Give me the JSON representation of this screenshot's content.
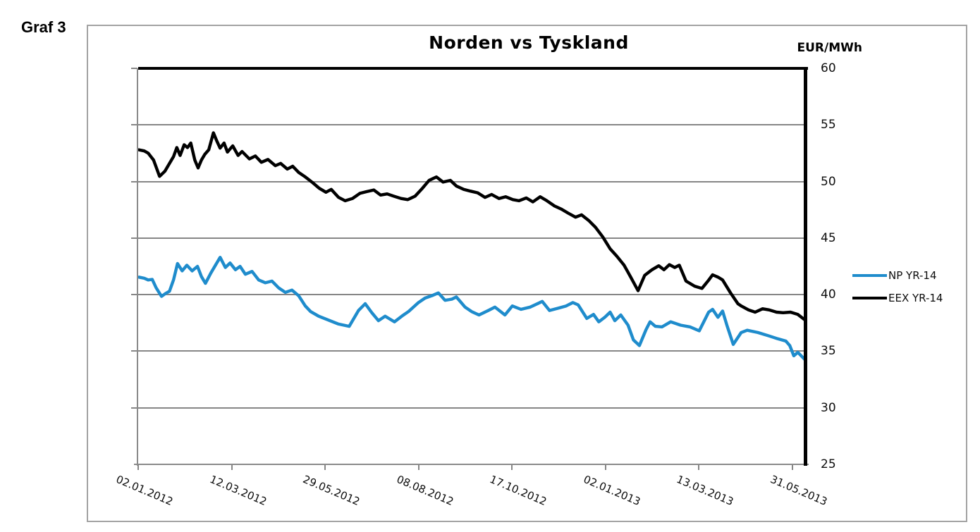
{
  "figure_label": "Graf 3",
  "chart_data": {
    "type": "line",
    "title": "Norden vs Tyskland",
    "ylabel": "EUR/MWh",
    "xlabel": "",
    "ylim": [
      25,
      60
    ],
    "y_tick_step": 5,
    "y_tick_labels": [
      "60",
      "55",
      "50",
      "45",
      "40",
      "35",
      "30",
      "25"
    ],
    "x_tick_labels": [
      "02.01.2012",
      "12.03.2012",
      "29.05.2012",
      "08.08.2012",
      "17.10.2012",
      "02.01.2013",
      "13.03.2013",
      "31.05.2013"
    ],
    "grid": "horizontal",
    "legend_position": "right",
    "axis_colors": {
      "grid": "#868686",
      "value_axis": "#000000",
      "category_axis": "#8a8a8a"
    },
    "series": [
      {
        "name": "NP YR-14",
        "color": "#1f8ccc",
        "points": [
          [
            0.0,
            41.55
          ],
          [
            0.008,
            41.45
          ],
          [
            0.014,
            41.3
          ],
          [
            0.02,
            41.35
          ],
          [
            0.026,
            40.6
          ],
          [
            0.034,
            39.85
          ],
          [
            0.04,
            40.1
          ],
          [
            0.046,
            40.3
          ],
          [
            0.052,
            41.3
          ],
          [
            0.058,
            42.75
          ],
          [
            0.065,
            42.1
          ],
          [
            0.072,
            42.6
          ],
          [
            0.08,
            42.1
          ],
          [
            0.088,
            42.5
          ],
          [
            0.094,
            41.6
          ],
          [
            0.1,
            41.0
          ],
          [
            0.108,
            41.9
          ],
          [
            0.115,
            42.6
          ],
          [
            0.122,
            43.3
          ],
          [
            0.13,
            42.4
          ],
          [
            0.137,
            42.8
          ],
          [
            0.145,
            42.2
          ],
          [
            0.152,
            42.5
          ],
          [
            0.16,
            41.8
          ],
          [
            0.17,
            42.05
          ],
          [
            0.18,
            41.3
          ],
          [
            0.19,
            41.05
          ],
          [
            0.2,
            41.2
          ],
          [
            0.21,
            40.6
          ],
          [
            0.22,
            40.2
          ],
          [
            0.23,
            40.4
          ],
          [
            0.24,
            39.9
          ],
          [
            0.25,
            39.0
          ],
          [
            0.258,
            38.5
          ],
          [
            0.27,
            38.1
          ],
          [
            0.287,
            37.7
          ],
          [
            0.3,
            37.4
          ],
          [
            0.316,
            37.2
          ],
          [
            0.33,
            38.6
          ],
          [
            0.34,
            39.2
          ],
          [
            0.35,
            38.4
          ],
          [
            0.36,
            37.7
          ],
          [
            0.37,
            38.1
          ],
          [
            0.384,
            37.6
          ],
          [
            0.395,
            38.1
          ],
          [
            0.405,
            38.5
          ],
          [
            0.42,
            39.3
          ],
          [
            0.43,
            39.7
          ],
          [
            0.44,
            39.9
          ],
          [
            0.45,
            40.15
          ],
          [
            0.46,
            39.5
          ],
          [
            0.47,
            39.6
          ],
          [
            0.477,
            39.8
          ],
          [
            0.49,
            38.9
          ],
          [
            0.5,
            38.5
          ],
          [
            0.511,
            38.2
          ],
          [
            0.525,
            38.6
          ],
          [
            0.535,
            38.9
          ],
          [
            0.55,
            38.2
          ],
          [
            0.561,
            39.0
          ],
          [
            0.574,
            38.7
          ],
          [
            0.588,
            38.9
          ],
          [
            0.606,
            39.4
          ],
          [
            0.617,
            38.6
          ],
          [
            0.63,
            38.8
          ],
          [
            0.642,
            39.0
          ],
          [
            0.652,
            39.3
          ],
          [
            0.66,
            39.1
          ],
          [
            0.673,
            37.9
          ],
          [
            0.683,
            38.25
          ],
          [
            0.691,
            37.6
          ],
          [
            0.7,
            38.0
          ],
          [
            0.708,
            38.45
          ],
          [
            0.715,
            37.7
          ],
          [
            0.724,
            38.2
          ],
          [
            0.735,
            37.3
          ],
          [
            0.743,
            36.0
          ],
          [
            0.752,
            35.5
          ],
          [
            0.762,
            36.9
          ],
          [
            0.768,
            37.6
          ],
          [
            0.776,
            37.2
          ],
          [
            0.786,
            37.15
          ],
          [
            0.799,
            37.6
          ],
          [
            0.814,
            37.3
          ],
          [
            0.828,
            37.15
          ],
          [
            0.842,
            36.8
          ],
          [
            0.856,
            38.45
          ],
          [
            0.862,
            38.7
          ],
          [
            0.87,
            38.0
          ],
          [
            0.877,
            38.55
          ],
          [
            0.884,
            37.2
          ],
          [
            0.893,
            35.6
          ],
          [
            0.905,
            36.65
          ],
          [
            0.914,
            36.85
          ],
          [
            0.93,
            36.65
          ],
          [
            0.947,
            36.35
          ],
          [
            0.96,
            36.1
          ],
          [
            0.972,
            35.9
          ],
          [
            0.978,
            35.5
          ],
          [
            0.984,
            34.6
          ],
          [
            0.99,
            34.9
          ],
          [
            1.0,
            34.3
          ]
        ]
      },
      {
        "name": "EEX YR-14",
        "color": "#000000",
        "points": [
          [
            0.0,
            52.8
          ],
          [
            0.008,
            52.7
          ],
          [
            0.014,
            52.5
          ],
          [
            0.022,
            51.9
          ],
          [
            0.031,
            50.45
          ],
          [
            0.039,
            50.9
          ],
          [
            0.046,
            51.6
          ],
          [
            0.052,
            52.2
          ],
          [
            0.057,
            53.0
          ],
          [
            0.062,
            52.3
          ],
          [
            0.068,
            53.25
          ],
          [
            0.073,
            53.0
          ],
          [
            0.078,
            53.4
          ],
          [
            0.084,
            51.9
          ],
          [
            0.089,
            51.2
          ],
          [
            0.094,
            51.9
          ],
          [
            0.099,
            52.4
          ],
          [
            0.105,
            52.8
          ],
          [
            0.112,
            54.3
          ],
          [
            0.117,
            53.6
          ],
          [
            0.122,
            52.95
          ],
          [
            0.128,
            53.4
          ],
          [
            0.133,
            52.6
          ],
          [
            0.141,
            53.15
          ],
          [
            0.149,
            52.3
          ],
          [
            0.155,
            52.65
          ],
          [
            0.166,
            52.0
          ],
          [
            0.175,
            52.25
          ],
          [
            0.184,
            51.7
          ],
          [
            0.194,
            51.95
          ],
          [
            0.205,
            51.4
          ],
          [
            0.213,
            51.6
          ],
          [
            0.223,
            51.1
          ],
          [
            0.231,
            51.35
          ],
          [
            0.24,
            50.8
          ],
          [
            0.25,
            50.4
          ],
          [
            0.261,
            49.9
          ],
          [
            0.271,
            49.4
          ],
          [
            0.281,
            49.05
          ],
          [
            0.289,
            49.3
          ],
          [
            0.3,
            48.6
          ],
          [
            0.31,
            48.3
          ],
          [
            0.321,
            48.5
          ],
          [
            0.332,
            48.95
          ],
          [
            0.342,
            49.1
          ],
          [
            0.353,
            49.25
          ],
          [
            0.363,
            48.8
          ],
          [
            0.373,
            48.9
          ],
          [
            0.383,
            48.7
          ],
          [
            0.394,
            48.5
          ],
          [
            0.404,
            48.4
          ],
          [
            0.415,
            48.7
          ],
          [
            0.426,
            49.4
          ],
          [
            0.436,
            50.1
          ],
          [
            0.447,
            50.4
          ],
          [
            0.457,
            49.95
          ],
          [
            0.468,
            50.1
          ],
          [
            0.477,
            49.6
          ],
          [
            0.488,
            49.3
          ],
          [
            0.498,
            49.15
          ],
          [
            0.509,
            49.0
          ],
          [
            0.52,
            48.6
          ],
          [
            0.53,
            48.85
          ],
          [
            0.541,
            48.5
          ],
          [
            0.551,
            48.65
          ],
          [
            0.562,
            48.4
          ],
          [
            0.571,
            48.3
          ],
          [
            0.582,
            48.55
          ],
          [
            0.592,
            48.2
          ],
          [
            0.603,
            48.65
          ],
          [
            0.613,
            48.3
          ],
          [
            0.624,
            47.85
          ],
          [
            0.635,
            47.55
          ],
          [
            0.645,
            47.2
          ],
          [
            0.656,
            46.85
          ],
          [
            0.665,
            47.05
          ],
          [
            0.676,
            46.55
          ],
          [
            0.686,
            45.95
          ],
          [
            0.697,
            45.1
          ],
          [
            0.708,
            44.05
          ],
          [
            0.718,
            43.4
          ],
          [
            0.729,
            42.6
          ],
          [
            0.739,
            41.55
          ],
          [
            0.75,
            40.35
          ],
          [
            0.76,
            41.7
          ],
          [
            0.771,
            42.2
          ],
          [
            0.781,
            42.55
          ],
          [
            0.789,
            42.2
          ],
          [
            0.797,
            42.65
          ],
          [
            0.805,
            42.4
          ],
          [
            0.812,
            42.6
          ],
          [
            0.822,
            41.2
          ],
          [
            0.835,
            40.75
          ],
          [
            0.846,
            40.55
          ],
          [
            0.855,
            41.2
          ],
          [
            0.862,
            41.75
          ],
          [
            0.87,
            41.55
          ],
          [
            0.877,
            41.3
          ],
          [
            0.889,
            40.15
          ],
          [
            0.9,
            39.2
          ],
          [
            0.905,
            39.0
          ],
          [
            0.916,
            38.65
          ],
          [
            0.926,
            38.45
          ],
          [
            0.937,
            38.75
          ],
          [
            0.947,
            38.65
          ],
          [
            0.958,
            38.45
          ],
          [
            0.968,
            38.4
          ],
          [
            0.979,
            38.45
          ],
          [
            0.99,
            38.25
          ],
          [
            1.0,
            37.8
          ]
        ]
      }
    ]
  }
}
